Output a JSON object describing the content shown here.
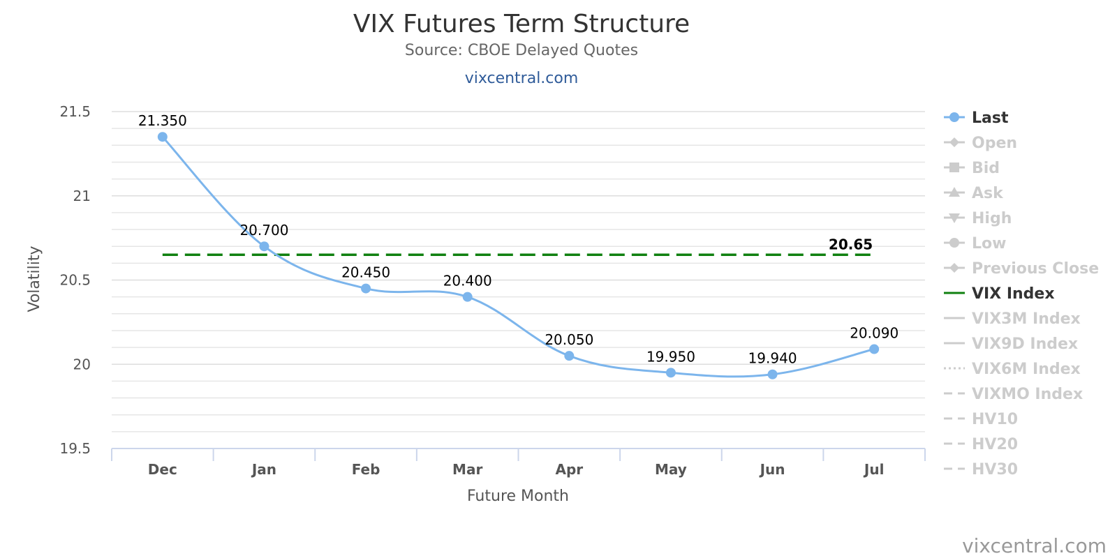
{
  "chart_data": {
    "type": "line",
    "title": "VIX Futures Term Structure",
    "subtitle": "Source: CBOE Delayed Quotes",
    "link_text": "vixcentral.com",
    "credit": "vixcentral.com",
    "xlabel": "Future Month",
    "ylabel": "Volatility",
    "categories": [
      "Dec",
      "Jan",
      "Feb",
      "Mar",
      "Apr",
      "May",
      "Jun",
      "Jul"
    ],
    "ylim": [
      19.5,
      21.5
    ],
    "yticks": [
      "19.5",
      "20",
      "20.5",
      "21",
      "21.5"
    ],
    "grid": true,
    "series": [
      {
        "name": "Last",
        "values": [
          21.35,
          20.7,
          20.45,
          20.4,
          20.05,
          19.95,
          19.94,
          20.09
        ],
        "labels": [
          "21.350",
          "20.700",
          "20.450",
          "20.400",
          "20.050",
          "19.950",
          "19.940",
          "20.090"
        ],
        "color": "#7cb5ec"
      },
      {
        "name": "VIX Index",
        "value": 20.65,
        "label": "20.65",
        "color": "#108010"
      }
    ],
    "legend_placement": "right",
    "legend": [
      {
        "name": "Last",
        "active": true,
        "symbol": "circle-line"
      },
      {
        "name": "Open",
        "active": false,
        "symbol": "diamond-line"
      },
      {
        "name": "Bid",
        "active": false,
        "symbol": "square-line"
      },
      {
        "name": "Ask",
        "active": false,
        "symbol": "triangle-line"
      },
      {
        "name": "High",
        "active": false,
        "symbol": "triangle-down-line"
      },
      {
        "name": "Low",
        "active": false,
        "symbol": "circle-line"
      },
      {
        "name": "Previous Close",
        "active": false,
        "symbol": "diamond-line"
      },
      {
        "name": "VIX Index",
        "active": true,
        "symbol": "solid-line"
      },
      {
        "name": "VIX3M Index",
        "active": false,
        "symbol": "solid-line"
      },
      {
        "name": "VIX9D Index",
        "active": false,
        "symbol": "solid-line"
      },
      {
        "name": "VIX6M Index",
        "active": false,
        "symbol": "dotted-line"
      },
      {
        "name": "VIXMO Index",
        "active": false,
        "symbol": "dash-dot-line"
      },
      {
        "name": "HV10",
        "active": false,
        "symbol": "dash-dot-line"
      },
      {
        "name": "HV20",
        "active": false,
        "symbol": "dash-dot-line"
      },
      {
        "name": "HV30",
        "active": false,
        "symbol": "dash-dot-line"
      }
    ],
    "colors": {
      "legend_active_text": "#333333",
      "legend_inactive": "#cccccc",
      "grid": "#e6e6e6",
      "axis": "#ccd6eb"
    }
  }
}
